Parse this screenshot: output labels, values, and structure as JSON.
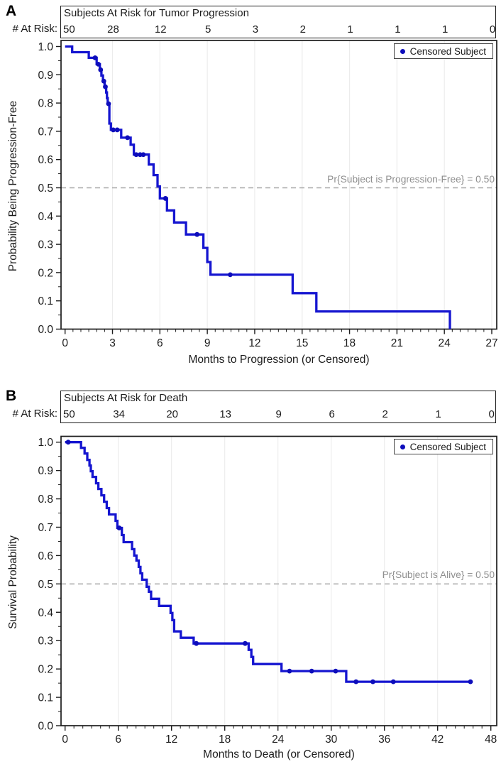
{
  "chart_data": [
    {
      "panel": "A",
      "type": "line",
      "subtype": "kaplan_meier_step",
      "risk_table": {
        "label": "# At Risk:",
        "title": "Subjects At Risk for Tumor Progression",
        "times": [
          0,
          3,
          6,
          9,
          12,
          15,
          18,
          21,
          24,
          27
        ],
        "counts": [
          50,
          28,
          12,
          5,
          3,
          2,
          1,
          1,
          1,
          0
        ]
      },
      "legend": {
        "label": "Censored Subject",
        "position": "top-right"
      },
      "ref_line": {
        "y": 0.5,
        "label": "Pr{Subject is Progression-Free} = 0.50"
      },
      "xlabel": "Months to Progression (or Censored)",
      "ylabel": "Probability Being Progression-Free",
      "xlim": [
        0,
        27
      ],
      "ylim": [
        0,
        1
      ],
      "xticks": [
        0,
        3,
        6,
        9,
        12,
        15,
        18,
        21,
        24,
        27
      ],
      "yticks": [
        0,
        0.1,
        0.2,
        0.3,
        0.4,
        0.5,
        0.6,
        0.7,
        0.8,
        0.9,
        1
      ],
      "x_minor_step": 0.5,
      "y_minor_step": 0.05,
      "grid": "vertical-major-only",
      "colors": {
        "line": "#1515d0",
        "censor_dot": "#0d0dbb",
        "grid": "#ececec",
        "ref_line": "#a8a8a8",
        "ref_label": "#8f8f8f",
        "axis": "#1c1c1c"
      },
      "steps": [
        [
          0,
          1.0
        ],
        [
          0.45,
          0.98
        ],
        [
          1.5,
          0.96
        ],
        [
          2.0,
          0.9375
        ],
        [
          2.2,
          0.9175
        ],
        [
          2.3,
          0.8975
        ],
        [
          2.4,
          0.8775
        ],
        [
          2.5,
          0.8575
        ],
        [
          2.6,
          0.8375
        ],
        [
          2.65,
          0.8175
        ],
        [
          2.7,
          0.7975
        ],
        [
          2.8,
          0.7275
        ],
        [
          2.9,
          0.705
        ],
        [
          3.55,
          0.6775
        ],
        [
          4.15,
          0.6525
        ],
        [
          4.35,
          0.6175
        ],
        [
          5.3,
          0.5825
        ],
        [
          5.6,
          0.545
        ],
        [
          5.85,
          0.505
        ],
        [
          6.0,
          0.4625
        ],
        [
          6.45,
          0.42
        ],
        [
          6.9,
          0.3775
        ],
        [
          7.65,
          0.335
        ],
        [
          8.75,
          0.2875
        ],
        [
          9.0,
          0.2375
        ],
        [
          9.2,
          0.1925
        ],
        [
          14.4,
          0.1275
        ],
        [
          15.9,
          0.0625
        ],
        [
          24.35,
          0.0
        ]
      ],
      "censored": [
        [
          1.9,
          0.96
        ],
        [
          2.1,
          0.9375
        ],
        [
          2.25,
          0.9175
        ],
        [
          2.45,
          0.8775
        ],
        [
          2.55,
          0.8575
        ],
        [
          2.75,
          0.7975
        ],
        [
          3.05,
          0.705
        ],
        [
          3.3,
          0.705
        ],
        [
          3.95,
          0.6775
        ],
        [
          4.5,
          0.6175
        ],
        [
          4.75,
          0.6175
        ],
        [
          4.95,
          0.6175
        ],
        [
          6.35,
          0.4625
        ],
        [
          8.35,
          0.335
        ],
        [
          10.45,
          0.1925
        ]
      ],
      "end_time": 24.35
    },
    {
      "panel": "B",
      "type": "line",
      "subtype": "kaplan_meier_step",
      "risk_table": {
        "label": "# At Risk:",
        "title": "Subjects At Risk for Death",
        "times": [
          0,
          6,
          12,
          18,
          24,
          30,
          36,
          42,
          48
        ],
        "counts": [
          50,
          34,
          20,
          13,
          9,
          6,
          2,
          1,
          0
        ]
      },
      "legend": {
        "label": "Censored Subject",
        "position": "top-right"
      },
      "ref_line": {
        "y": 0.5,
        "label": "Pr{Subject is Alive} = 0.50"
      },
      "xlabel": "Months to Death (or Censored)",
      "ylabel": "Survival Probability",
      "xlim": [
        0,
        48
      ],
      "ylim": [
        0,
        1
      ],
      "xticks": [
        0,
        6,
        12,
        18,
        24,
        30,
        36,
        42,
        48
      ],
      "yticks": [
        0,
        0.1,
        0.2,
        0.3,
        0.4,
        0.5,
        0.6,
        0.7,
        0.8,
        0.9,
        1
      ],
      "x_minor_step": 1,
      "y_minor_step": 0.05,
      "grid": "vertical-major-only",
      "colors": {
        "line": "#1515d0",
        "censor_dot": "#0d0dbb",
        "grid": "#ececec",
        "ref_line": "#a8a8a8",
        "ref_label": "#8f8f8f",
        "axis": "#1c1c1c"
      },
      "steps": [
        [
          0,
          1.0
        ],
        [
          1.8,
          0.98
        ],
        [
          2.2,
          0.96
        ],
        [
          2.5,
          0.9375
        ],
        [
          2.75,
          0.9175
        ],
        [
          2.9,
          0.8975
        ],
        [
          3.1,
          0.8775
        ],
        [
          3.5,
          0.855
        ],
        [
          3.75,
          0.835
        ],
        [
          4.1,
          0.8125
        ],
        [
          4.4,
          0.79
        ],
        [
          4.7,
          0.7675
        ],
        [
          4.95,
          0.745
        ],
        [
          5.7,
          0.7225
        ],
        [
          5.9,
          0.6975
        ],
        [
          6.4,
          0.6725
        ],
        [
          6.6,
          0.6475
        ],
        [
          7.55,
          0.6225
        ],
        [
          7.8,
          0.6
        ],
        [
          8.05,
          0.5825
        ],
        [
          8.3,
          0.56
        ],
        [
          8.5,
          0.5375
        ],
        [
          8.7,
          0.515
        ],
        [
          9.2,
          0.49
        ],
        [
          9.45,
          0.4725
        ],
        [
          9.7,
          0.4475
        ],
        [
          10.6,
          0.4225
        ],
        [
          11.9,
          0.3975
        ],
        [
          12.1,
          0.3725
        ],
        [
          12.3,
          0.3325
        ],
        [
          13.05,
          0.31
        ],
        [
          14.5,
          0.29
        ],
        [
          20.7,
          0.2675
        ],
        [
          21.0,
          0.2425
        ],
        [
          21.2,
          0.2175
        ],
        [
          24.4,
          0.1925
        ],
        [
          31.7,
          0.155
        ]
      ],
      "censored": [
        [
          0.35,
          1.0
        ],
        [
          6.1,
          0.6975
        ],
        [
          14.8,
          0.29
        ],
        [
          20.3,
          0.29
        ],
        [
          25.3,
          0.1925
        ],
        [
          27.8,
          0.1925
        ],
        [
          30.5,
          0.1925
        ],
        [
          32.8,
          0.155
        ],
        [
          34.7,
          0.155
        ],
        [
          37.0,
          0.155
        ],
        [
          45.7,
          0.155
        ]
      ],
      "end_time": 45.7
    }
  ]
}
